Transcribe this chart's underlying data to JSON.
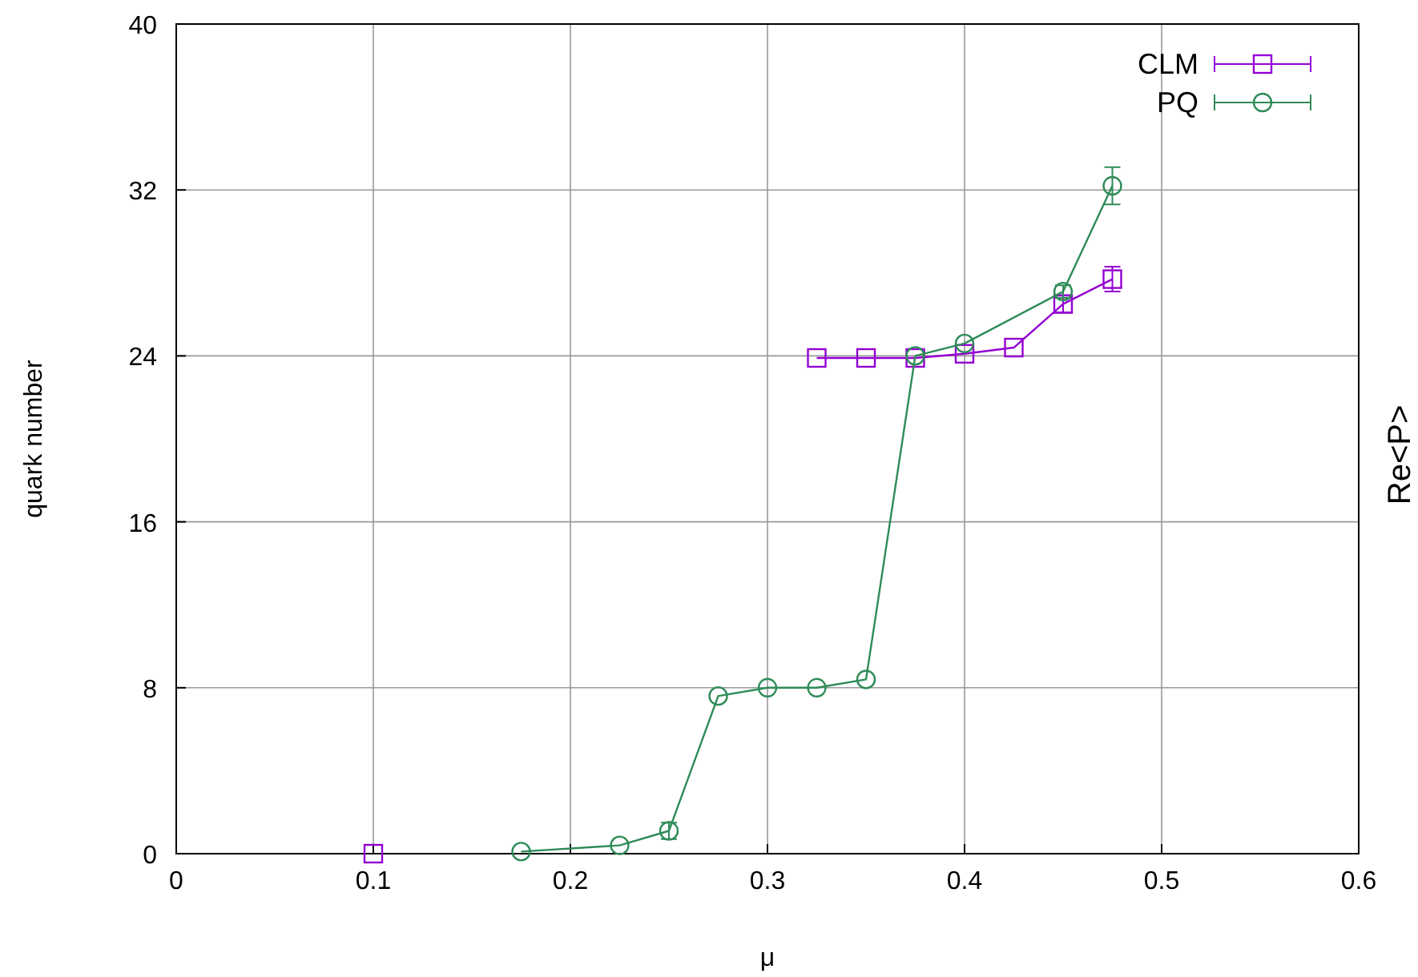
{
  "chart_data": {
    "type": "line",
    "xlabel": "μ",
    "ylabel": "quark number",
    "y2label": "Re<P>",
    "xlim": [
      0,
      0.6
    ],
    "xticks": [
      0,
      0.1,
      0.2,
      0.3,
      0.4,
      0.5,
      0.6
    ],
    "ylim": [
      0,
      40
    ],
    "yticks": [
      0,
      8,
      16,
      24,
      32,
      40
    ],
    "grid": true,
    "legend": "top right",
    "line_style": "solid",
    "series": [
      {
        "name": "CLM",
        "color": "#9400d3",
        "marker": "square",
        "x": [
          0.1,
          0.2,
          0.325,
          0.35,
          0.375,
          0.4,
          0.425,
          0.45,
          0.475
        ],
        "values": [
          0,
          null,
          23.9,
          23.9,
          23.9,
          24.1,
          24.4,
          26.5,
          27.7
        ],
        "errors": [
          null,
          null,
          null,
          null,
          null,
          null,
          null,
          0.4,
          0.6
        ]
      },
      {
        "name": "PQ",
        "color": "#2e8b57",
        "marker": "circle",
        "x": [
          0.175,
          0.225,
          0.25,
          0.275,
          0.3,
          0.325,
          0.35,
          0.375,
          0.4,
          0.45,
          0.475
        ],
        "values": [
          0.1,
          0.4,
          1.1,
          7.6,
          8.0,
          8.0,
          8.4,
          24.0,
          24.6,
          27.1,
          32.2
        ],
        "errors": [
          null,
          null,
          0.4,
          null,
          null,
          null,
          null,
          null,
          null,
          0.3,
          0.9
        ]
      }
    ]
  }
}
